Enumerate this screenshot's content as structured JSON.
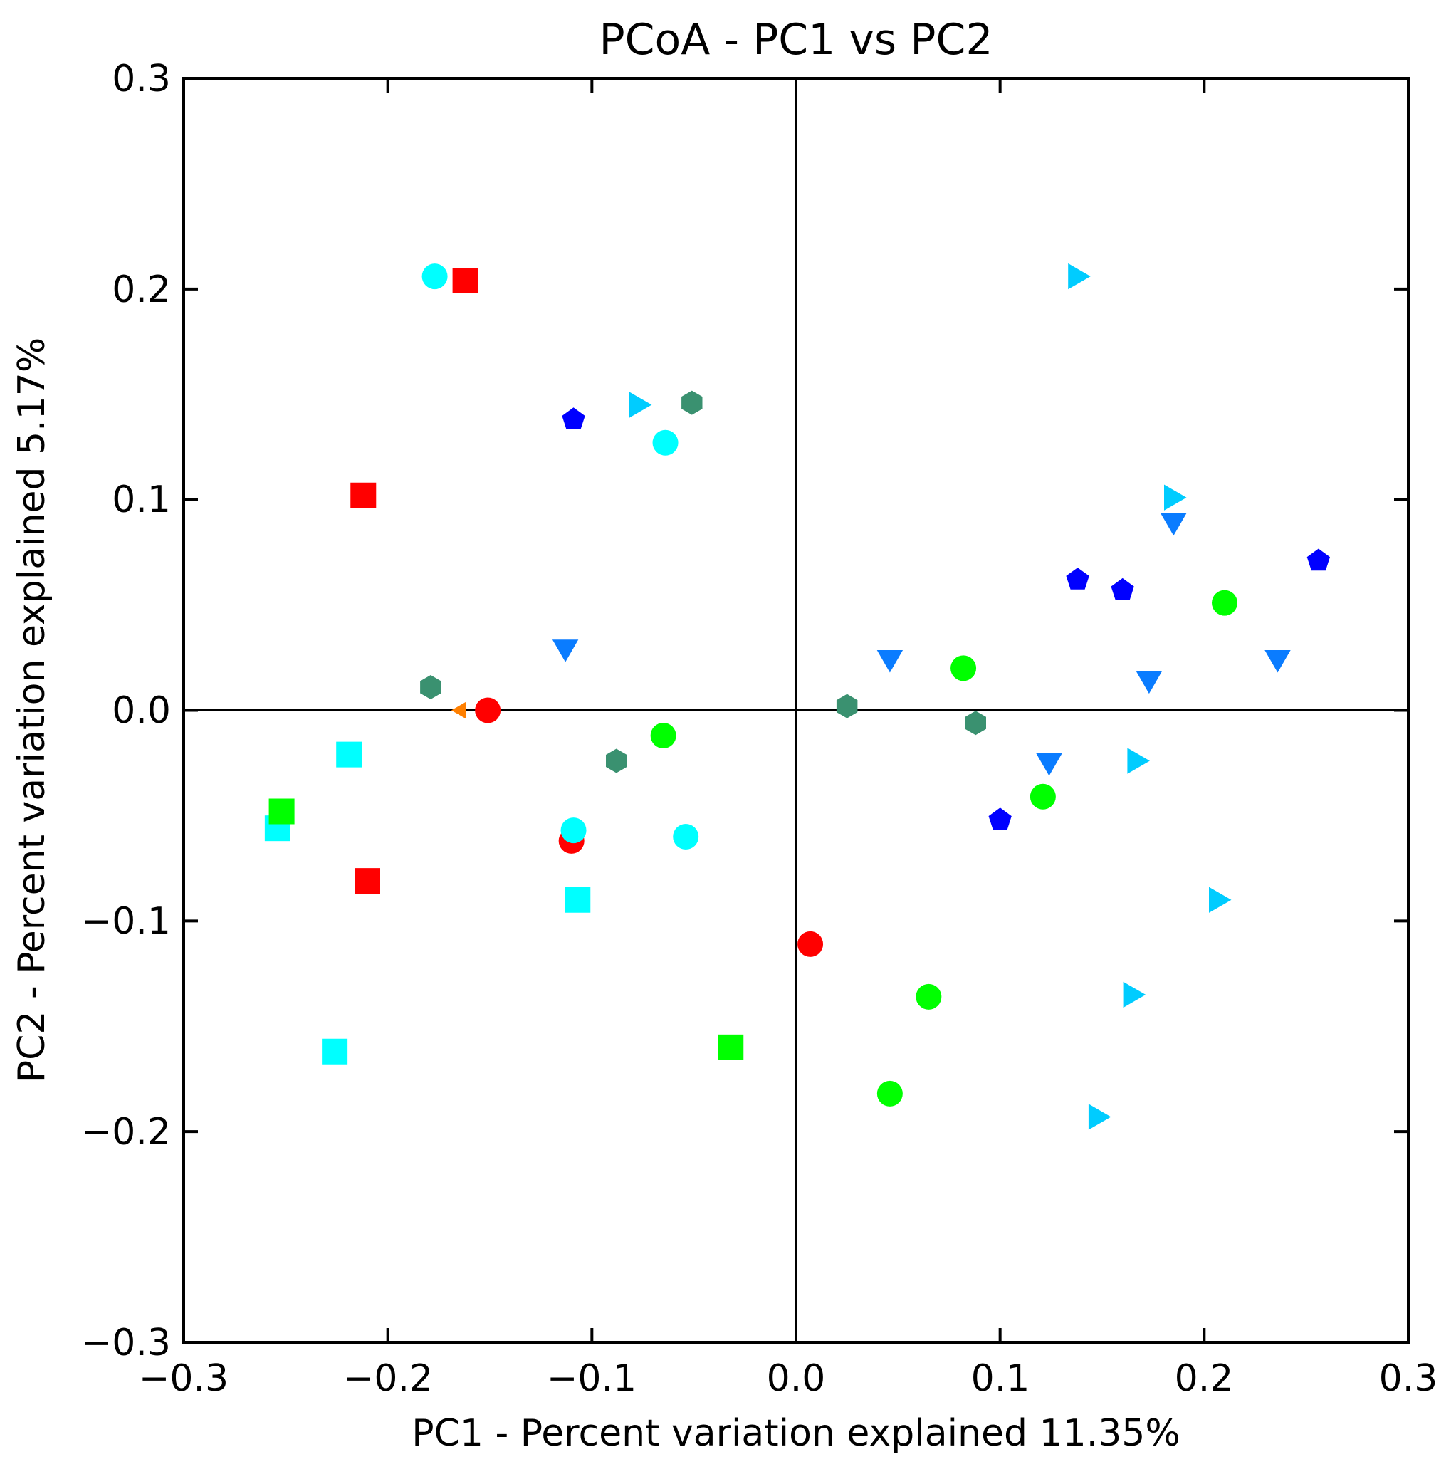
{
  "chart_data": {
    "type": "scatter",
    "title": "PCoA - PC1 vs PC2",
    "xlabel": "PC1 - Percent variation explained 11.35%",
    "ylabel": "PC2 - Percent variation explained 5.17%",
    "xlim": [
      -0.3,
      0.3
    ],
    "ylim": [
      -0.3,
      0.3
    ],
    "x_tick_labels": [
      "−0.3",
      "−0.2",
      "−0.1",
      "0.0",
      "0.1",
      "0.2",
      "0.3"
    ],
    "y_tick_labels": [
      "0.3",
      "0.2",
      "0.1",
      "0.0",
      "−0.1",
      "−0.2",
      "−0.3"
    ],
    "x_ticks": [
      -0.3,
      -0.2,
      -0.1,
      0.0,
      0.1,
      0.2,
      0.3
    ],
    "y_ticks": [
      0.3,
      0.2,
      0.1,
      0.0,
      -0.1,
      -0.2,
      -0.3
    ],
    "zero_lines": true,
    "legend": "none",
    "series": [
      {
        "name": "red-square",
        "marker": "square",
        "color": "#ff0000",
        "points": [
          [
            -0.162,
            0.204
          ],
          [
            -0.212,
            0.102
          ],
          [
            -0.21,
            -0.081
          ]
        ]
      },
      {
        "name": "red-circle",
        "marker": "circle",
        "color": "#ff0000",
        "points": [
          [
            -0.151,
            0.0
          ],
          [
            -0.11,
            -0.062
          ],
          [
            0.007,
            -0.111
          ]
        ]
      },
      {
        "name": "cyan-circle",
        "marker": "circle",
        "color": "#00ffff",
        "points": [
          [
            -0.177,
            0.206
          ],
          [
            -0.064,
            0.127
          ],
          [
            -0.109,
            -0.057
          ],
          [
            -0.054,
            -0.06
          ]
        ]
      },
      {
        "name": "cyan-square",
        "marker": "square",
        "color": "#00ffff",
        "points": [
          [
            -0.219,
            -0.021
          ],
          [
            -0.254,
            -0.056
          ],
          [
            -0.107,
            -0.09
          ],
          [
            -0.226,
            -0.162
          ]
        ]
      },
      {
        "name": "green-square",
        "marker": "square",
        "color": "#00ff00",
        "points": [
          [
            -0.252,
            -0.048
          ],
          [
            -0.032,
            -0.16
          ]
        ]
      },
      {
        "name": "green-circle",
        "marker": "circle",
        "color": "#00ff00",
        "points": [
          [
            -0.065,
            -0.012
          ],
          [
            0.082,
            0.02
          ],
          [
            0.21,
            0.051
          ],
          [
            0.121,
            -0.041
          ],
          [
            0.065,
            -0.136
          ],
          [
            0.046,
            -0.182
          ]
        ]
      },
      {
        "name": "blue-pentagon",
        "marker": "pentagon",
        "color": "#0000ff",
        "points": [
          [
            -0.109,
            0.138
          ],
          [
            0.138,
            0.062
          ],
          [
            0.16,
            0.057
          ],
          [
            0.256,
            0.071
          ],
          [
            0.1,
            -0.052
          ]
        ]
      },
      {
        "name": "azure-triangle-down",
        "marker": "triangle-down",
        "color": "#0a7cff",
        "points": [
          [
            -0.113,
            0.03
          ],
          [
            0.046,
            0.025
          ],
          [
            0.185,
            0.09
          ],
          [
            0.173,
            0.015
          ],
          [
            0.236,
            0.025
          ],
          [
            0.124,
            -0.024
          ]
        ]
      },
      {
        "name": "skyblue-triangle-right",
        "marker": "triangle-right",
        "color": "#00ccff",
        "points": [
          [
            0.137,
            0.206
          ],
          [
            -0.078,
            0.145
          ],
          [
            0.184,
            0.101
          ],
          [
            0.166,
            -0.024
          ],
          [
            0.206,
            -0.09
          ],
          [
            0.164,
            -0.135
          ],
          [
            0.147,
            -0.193
          ]
        ]
      },
      {
        "name": "seagreen-hexagon",
        "marker": "hexagon",
        "color": "#3a9170",
        "points": [
          [
            -0.051,
            0.146
          ],
          [
            -0.179,
            0.011
          ],
          [
            -0.088,
            -0.024
          ],
          [
            0.025,
            0.002
          ],
          [
            0.088,
            -0.006
          ]
        ]
      },
      {
        "name": "orange-triangle-left",
        "marker": "triangle-left",
        "color": "#ff7f00",
        "points": [
          [
            -0.164,
            0.0
          ]
        ]
      }
    ]
  }
}
